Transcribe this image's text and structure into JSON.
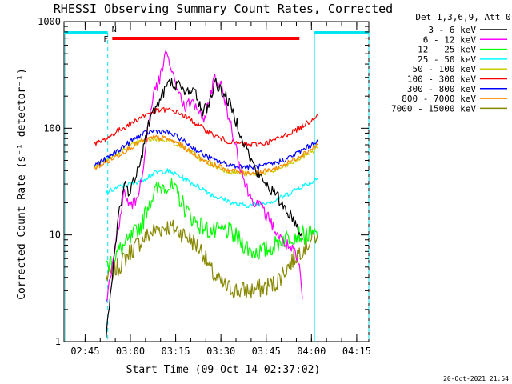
{
  "chart_data": {
    "type": "line",
    "title": "RHESSI Observing Summary Count Rates, Corrected",
    "xlabel": "Start Time (09-Oct-14 02:37:02)",
    "ylabel": "Corrected Count Rate (s⁻¹ detector⁻¹)",
    "yscale": "log",
    "ylim": [
      1,
      1000
    ],
    "xlim_minutes": [
      38,
      139
    ],
    "x_ticks": [
      {
        "label": "02:45",
        "t": 45
      },
      {
        "label": "03:00",
        "t": 60
      },
      {
        "label": "03:15",
        "t": 75
      },
      {
        "label": "03:30",
        "t": 90
      },
      {
        "label": "03:45",
        "t": 105
      },
      {
        "label": "04:00",
        "t": 120
      },
      {
        "label": "04:15",
        "t": 135
      }
    ],
    "y_ticks": [
      {
        "label": "1",
        "v": 1
      },
      {
        "label": "10",
        "v": 10
      },
      {
        "label": "100",
        "v": 100
      },
      {
        "label": "1000",
        "v": 1000
      }
    ],
    "legend": {
      "header": "Det 1,3,6,9, Att 0",
      "placement": "top-right outside"
    },
    "series": [
      {
        "name": "3 - 6 keV",
        "color": "#000000",
        "points": [
          [
            52,
            1.1
          ],
          [
            54,
            4
          ],
          [
            56,
            15
          ],
          [
            58,
            30
          ],
          [
            60,
            25
          ],
          [
            62,
            40
          ],
          [
            64,
            60
          ],
          [
            66,
            110
          ],
          [
            68,
            150
          ],
          [
            70,
            190
          ],
          [
            72,
            250
          ],
          [
            74,
            270
          ],
          [
            76,
            250
          ],
          [
            78,
            210
          ],
          [
            80,
            240
          ],
          [
            82,
            200
          ],
          [
            84,
            140
          ],
          [
            86,
            170
          ],
          [
            88,
            270
          ],
          [
            90,
            230
          ],
          [
            92,
            190
          ],
          [
            94,
            140
          ],
          [
            96,
            100
          ],
          [
            98,
            70
          ],
          [
            100,
            50
          ],
          [
            102,
            38
          ],
          [
            104,
            32
          ],
          [
            106,
            28
          ],
          [
            108,
            24
          ],
          [
            110,
            20
          ],
          [
            112,
            17
          ],
          [
            114,
            14
          ],
          [
            116,
            11
          ],
          [
            117,
            9
          ]
        ]
      },
      {
        "name": "6 - 12 keV",
        "color": "#ff00ff",
        "points": [
          [
            52,
            2.5
          ],
          [
            54,
            5
          ],
          [
            56,
            12
          ],
          [
            58,
            25
          ],
          [
            60,
            18
          ],
          [
            62,
            22
          ],
          [
            64,
            35
          ],
          [
            66,
            120
          ],
          [
            68,
            220
          ],
          [
            70,
            300
          ],
          [
            72,
            540
          ],
          [
            74,
            300
          ],
          [
            76,
            230
          ],
          [
            78,
            150
          ],
          [
            80,
            180
          ],
          [
            82,
            160
          ],
          [
            84,
            110
          ],
          [
            86,
            180
          ],
          [
            88,
            300
          ],
          [
            90,
            250
          ],
          [
            92,
            150
          ],
          [
            94,
            90
          ],
          [
            96,
            50
          ],
          [
            98,
            30
          ],
          [
            100,
            22
          ],
          [
            102,
            20
          ],
          [
            104,
            17
          ],
          [
            106,
            14
          ],
          [
            108,
            11
          ],
          [
            110,
            9
          ],
          [
            112,
            8
          ],
          [
            114,
            7
          ],
          [
            116,
            5
          ],
          [
            117,
            2.5
          ]
        ]
      },
      {
        "name": "12 - 25 keV",
        "color": "#00ff00",
        "points": [
          [
            52,
            5
          ],
          [
            56,
            7
          ],
          [
            60,
            9
          ],
          [
            64,
            13
          ],
          [
            66,
            20
          ],
          [
            68,
            25
          ],
          [
            70,
            28
          ],
          [
            72,
            30
          ],
          [
            74,
            27
          ],
          [
            76,
            23
          ],
          [
            78,
            18
          ],
          [
            80,
            15
          ],
          [
            82,
            13
          ],
          [
            84,
            12
          ],
          [
            86,
            11
          ],
          [
            88,
            10.5
          ],
          [
            90,
            11
          ],
          [
            92,
            11
          ],
          [
            94,
            10
          ],
          [
            96,
            9
          ],
          [
            98,
            8
          ],
          [
            100,
            7
          ],
          [
            102,
            7
          ],
          [
            104,
            7
          ],
          [
            106,
            7.5
          ],
          [
            108,
            8
          ],
          [
            110,
            9
          ],
          [
            112,
            9.5
          ],
          [
            114,
            10
          ],
          [
            118,
            10
          ],
          [
            120,
            10
          ],
          [
            122,
            10
          ]
        ]
      },
      {
        "name": "25 - 50 keV",
        "color": "#00ffff",
        "points": [
          [
            52,
            25
          ],
          [
            56,
            28
          ],
          [
            60,
            30
          ],
          [
            64,
            33
          ],
          [
            68,
            38
          ],
          [
            72,
            40
          ],
          [
            76,
            36
          ],
          [
            80,
            31
          ],
          [
            84,
            27
          ],
          [
            88,
            23
          ],
          [
            92,
            21
          ],
          [
            96,
            19
          ],
          [
            100,
            19
          ],
          [
            104,
            20
          ],
          [
            108,
            21
          ],
          [
            112,
            24
          ],
          [
            116,
            28
          ],
          [
            120,
            31
          ],
          [
            122,
            34
          ]
        ]
      },
      {
        "name": "50 - 100 keV",
        "color": "#cccc00",
        "points": [
          [
            48,
            45
          ],
          [
            52,
            50
          ],
          [
            56,
            58
          ],
          [
            60,
            68
          ],
          [
            64,
            76
          ],
          [
            68,
            80
          ],
          [
            72,
            78
          ],
          [
            76,
            70
          ],
          [
            80,
            60
          ],
          [
            84,
            50
          ],
          [
            88,
            44
          ],
          [
            92,
            40
          ],
          [
            96,
            38
          ],
          [
            100,
            37
          ],
          [
            104,
            38
          ],
          [
            108,
            40
          ],
          [
            112,
            45
          ],
          [
            116,
            52
          ],
          [
            120,
            60
          ],
          [
            122,
            65
          ]
        ]
      },
      {
        "name": "100 - 300 keV",
        "color": "#ff0000",
        "points": [
          [
            48,
            70
          ],
          [
            52,
            80
          ],
          [
            56,
            95
          ],
          [
            60,
            110
          ],
          [
            64,
            130
          ],
          [
            68,
            145
          ],
          [
            72,
            150
          ],
          [
            76,
            140
          ],
          [
            80,
            120
          ],
          [
            84,
            100
          ],
          [
            88,
            85
          ],
          [
            92,
            76
          ],
          [
            96,
            72
          ],
          [
            100,
            70
          ],
          [
            104,
            72
          ],
          [
            108,
            78
          ],
          [
            112,
            88
          ],
          [
            116,
            100
          ],
          [
            120,
            120
          ],
          [
            122,
            135
          ]
        ]
      },
      {
        "name": "300 - 800 keV",
        "color": "#0000ff",
        "points": [
          [
            48,
            45
          ],
          [
            52,
            52
          ],
          [
            56,
            62
          ],
          [
            60,
            75
          ],
          [
            64,
            88
          ],
          [
            68,
            95
          ],
          [
            72,
            92
          ],
          [
            76,
            82
          ],
          [
            80,
            68
          ],
          [
            84,
            57
          ],
          [
            88,
            50
          ],
          [
            92,
            46
          ],
          [
            96,
            44
          ],
          [
            100,
            43
          ],
          [
            104,
            44
          ],
          [
            108,
            47
          ],
          [
            112,
            52
          ],
          [
            116,
            60
          ],
          [
            120,
            70
          ],
          [
            122,
            78
          ]
        ]
      },
      {
        "name": "800 - 7000 keV",
        "color": "#ff8800",
        "points": [
          [
            48,
            42
          ],
          [
            52,
            48
          ],
          [
            56,
            56
          ],
          [
            60,
            66
          ],
          [
            64,
            76
          ],
          [
            68,
            82
          ],
          [
            72,
            80
          ],
          [
            76,
            72
          ],
          [
            80,
            60
          ],
          [
            84,
            51
          ],
          [
            88,
            45
          ],
          [
            92,
            41
          ],
          [
            96,
            39
          ],
          [
            100,
            38
          ],
          [
            104,
            39
          ],
          [
            108,
            42
          ],
          [
            112,
            47
          ],
          [
            116,
            55
          ],
          [
            120,
            64
          ],
          [
            122,
            70
          ]
        ]
      },
      {
        "name": "7000 - 15000 keV",
        "color": "#888800",
        "points": [
          [
            52,
            4
          ],
          [
            56,
            5
          ],
          [
            60,
            7
          ],
          [
            64,
            9
          ],
          [
            68,
            11
          ],
          [
            72,
            12
          ],
          [
            76,
            11
          ],
          [
            80,
            9
          ],
          [
            84,
            7
          ],
          [
            86,
            5
          ],
          [
            88,
            4
          ],
          [
            90,
            3.5
          ],
          [
            92,
            3.2
          ],
          [
            96,
            3
          ],
          [
            100,
            3
          ],
          [
            104,
            3.2
          ],
          [
            108,
            3.5
          ],
          [
            112,
            5
          ],
          [
            116,
            7
          ],
          [
            120,
            9
          ],
          [
            122,
            10
          ]
        ]
      }
    ],
    "annotations": {
      "night_bars": [
        {
          "start": 38,
          "end": 52.5,
          "label": ""
        },
        {
          "start": 121,
          "end": 139,
          "label": ""
        }
      ],
      "n_label": "N",
      "flare_bar": {
        "start": 54,
        "end": 116,
        "label": "F"
      }
    },
    "timestamp": "20-Oct-2021 21:54"
  }
}
